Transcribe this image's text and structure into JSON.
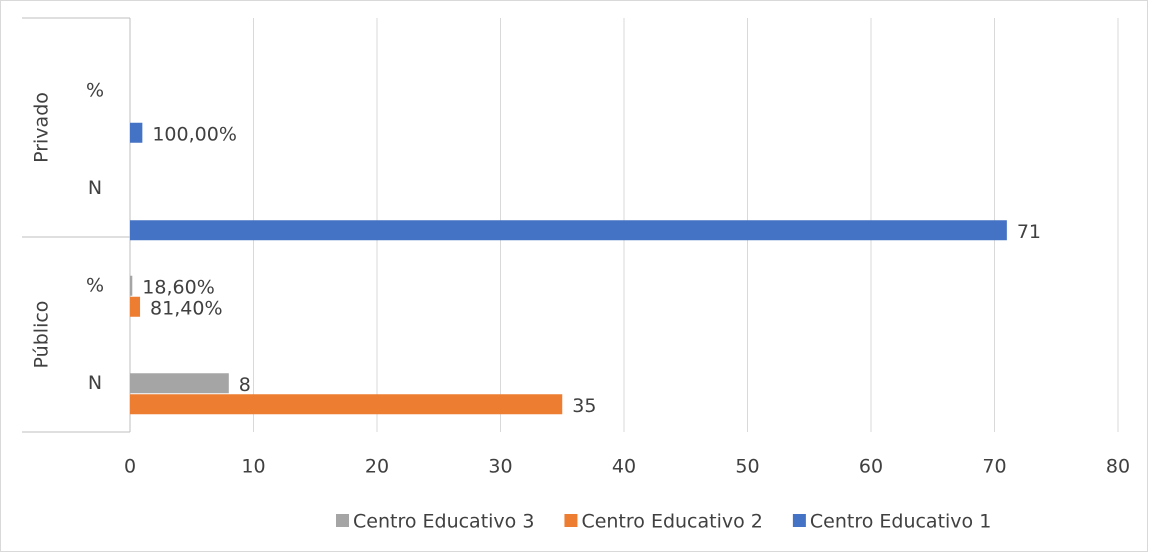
{
  "chart_data": {
    "type": "bar",
    "orientation": "horizontal",
    "category_groups": [
      {
        "label": "Público",
        "categories": [
          "N",
          "%"
        ]
      },
      {
        "label": "Privado",
        "categories": [
          "N",
          "%"
        ]
      }
    ],
    "series": [
      {
        "name": "Centro Educativo 1",
        "color": "#4472c4",
        "values": [
          null,
          null,
          71,
          1
        ],
        "value_labels": [
          null,
          null,
          null,
          "100,00%"
        ]
      },
      {
        "name": "Centro Educativo 2",
        "color": "#ed7d31",
        "values": [
          35,
          0.814,
          null,
          null
        ],
        "value_labels": [
          null,
          "81,40%",
          null,
          null
        ]
      },
      {
        "name": "Centro Educativo 3",
        "color": "#a5a5a5",
        "values": [
          8,
          0.186,
          null,
          null
        ],
        "value_labels": [
          null,
          "18,60%",
          null,
          null
        ]
      }
    ],
    "xlim": [
      0,
      80
    ],
    "xticks": [
      0,
      10,
      20,
      30,
      40,
      50,
      60,
      70,
      80
    ],
    "grid": true,
    "legend": "bottom"
  }
}
